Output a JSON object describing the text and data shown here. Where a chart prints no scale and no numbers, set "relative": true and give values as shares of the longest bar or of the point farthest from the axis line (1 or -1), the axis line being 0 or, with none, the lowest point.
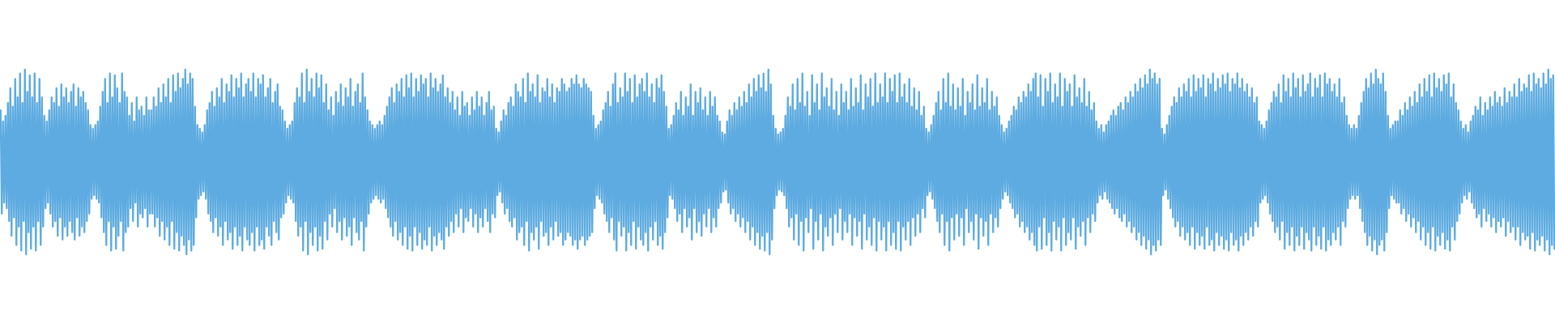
{
  "chart_data": {
    "type": "line",
    "relative": true,
    "color": "#5dabe0",
    "categories": [
      null,
      null,
      null,
      null,
      null,
      null,
      null,
      null,
      null,
      null,
      null,
      null,
      null,
      null,
      null,
      null,
      null,
      null,
      null,
      null,
      null,
      null,
      null,
      null,
      null,
      null,
      null,
      null,
      null,
      null,
      null,
      null,
      null,
      null,
      null,
      null,
      null,
      null,
      null,
      null,
      null,
      null,
      null,
      null,
      null,
      null,
      null,
      null,
      null,
      null,
      null,
      null,
      null,
      null,
      null,
      null,
      null,
      null,
      null,
      null,
      null,
      null,
      null,
      null,
      null,
      null,
      null,
      null,
      null,
      null,
      null,
      null,
      null,
      null,
      null,
      null,
      null,
      null,
      null,
      null,
      null,
      null,
      null,
      null,
      null,
      null,
      null,
      null,
      null,
      null,
      null,
      null,
      null,
      null,
      null,
      null,
      null,
      null,
      null,
      null,
      null,
      null,
      null,
      null,
      null,
      null,
      null,
      null,
      null,
      null,
      null,
      null,
      null,
      null,
      null,
      null,
      null,
      null,
      null,
      null,
      null,
      null,
      null,
      null,
      null,
      null,
      null,
      null,
      null,
      null,
      null,
      null,
      null,
      null,
      null,
      null,
      null,
      null,
      null,
      null,
      null,
      null,
      null,
      null,
      null,
      null,
      null,
      null,
      null,
      null,
      null,
      null,
      null,
      null,
      null,
      null,
      null,
      null,
      null,
      null,
      null,
      null,
      null,
      null,
      null,
      null,
      null,
      null,
      null,
      null,
      null,
      null,
      null,
      null,
      null,
      null,
      null,
      null,
      null,
      null,
      null,
      null,
      null,
      null,
      null,
      null,
      null,
      null,
      null,
      null,
      null,
      null,
      null,
      null,
      null,
      null,
      null,
      null,
      null,
      null,
      null,
      null,
      null,
      null,
      null,
      null,
      null,
      null,
      null,
      null,
      null,
      null,
      null,
      null,
      null,
      null,
      null,
      null,
      null,
      null,
      null,
      null,
      null,
      null,
      null,
      null,
      null,
      null,
      null,
      null,
      null,
      null,
      null,
      null,
      null,
      null,
      null,
      null,
      null,
      null,
      null,
      null,
      null,
      null,
      null,
      null,
      null,
      null,
      null,
      null,
      null,
      null,
      null,
      null,
      null,
      null,
      null,
      null,
      null,
      null,
      null,
      null,
      null,
      null,
      null,
      null,
      null,
      null,
      null,
      null,
      null,
      null,
      null,
      null,
      null,
      null,
      null,
      null,
      null,
      null,
      null,
      null,
      null,
      null,
      null,
      null,
      null,
      null,
      null,
      null,
      null,
      null,
      null,
      null,
      null,
      null,
      null,
      null,
      null,
      null,
      null,
      null,
      null,
      null,
      null,
      null,
      null,
      null,
      null,
      null,
      null,
      null,
      null,
      null,
      null,
      null,
      null,
      null,
      null,
      null,
      null,
      null,
      null,
      null,
      null,
      null,
      null,
      null,
      null,
      null,
      null,
      null,
      null,
      null,
      null,
      null,
      null,
      null,
      null,
      null,
      null,
      null,
      null,
      null,
      null,
      null,
      null,
      null,
      null,
      null,
      null,
      null,
      null,
      null,
      null,
      null,
      null,
      null,
      null,
      null,
      null,
      null,
      null,
      null,
      null,
      null,
      null,
      null,
      null,
      null,
      null,
      null,
      null,
      null,
      null,
      null,
      null,
      null,
      null,
      null,
      null,
      null,
      null,
      null,
      null,
      null,
      null,
      null,
      null,
      null,
      null,
      null,
      null,
      null,
      null,
      null,
      null,
      null,
      null,
      null,
      null,
      null,
      null,
      null,
      null,
      null,
      null,
      null,
      null,
      null,
      null,
      null,
      null,
      null,
      null,
      null,
      null,
      null,
      null,
      null,
      null,
      null,
      null,
      null,
      null,
      null,
      null,
      null,
      null,
      null,
      null,
      null,
      null,
      null,
      null,
      null,
      null,
      null,
      null,
      null,
      null,
      null,
      null,
      null,
      null,
      null,
      null,
      null,
      null,
      null,
      null,
      null,
      null,
      null,
      null,
      null,
      null,
      null,
      null,
      null,
      null,
      null,
      null,
      null,
      null,
      null,
      null,
      null,
      null,
      null,
      null,
      null,
      null,
      null,
      null,
      null,
      null,
      null,
      null,
      null,
      null,
      null,
      null,
      null,
      null,
      null,
      null,
      null,
      null,
      null,
      null,
      null,
      null,
      null,
      null,
      null,
      null,
      null,
      null,
      null,
      null,
      null,
      null,
      null,
      null,
      null,
      null,
      null,
      null,
      null,
      null,
      null,
      null,
      null,
      null,
      null,
      null,
      null,
      null,
      null,
      null,
      null,
      null,
      null,
      null,
      null,
      null,
      null,
      null,
      null,
      null,
      null,
      null,
      null,
      null,
      null,
      null,
      null,
      null,
      null,
      null,
      null,
      null,
      null,
      null,
      null,
      null,
      null,
      null,
      null,
      null,
      null,
      null,
      null,
      null,
      null,
      null,
      null,
      null,
      null,
      null,
      null,
      null,
      null,
      null,
      null,
      null,
      null,
      null,
      null,
      null,
      null,
      null,
      null,
      null,
      null,
      null,
      null,
      null,
      null,
      null,
      null,
      null,
      null,
      null,
      null,
      null,
      null,
      null,
      null,
      null,
      null,
      null,
      null,
      null,
      null,
      null,
      null,
      null,
      null,
      null,
      null,
      null,
      null,
      null,
      null,
      null,
      null,
      null,
      null,
      null,
      null,
      null,
      null,
      null,
      null,
      null,
      null,
      null,
      null,
      null,
      null,
      null,
      null,
      null,
      null,
      null,
      null,
      null,
      null,
      null,
      null,
      null,
      null,
      null,
      null,
      null,
      null,
      null,
      null,
      null,
      null,
      null,
      null,
      null,
      null,
      null,
      null,
      null,
      null,
      null,
      null,
      null,
      null,
      null,
      null,
      null,
      null,
      null,
      null,
      null,
      null,
      null,
      null,
      null,
      null,
      null,
      null,
      null,
      null,
      null,
      null,
      null,
      null,
      null,
      null,
      null,
      null,
      null,
      null,
      null,
      null,
      null,
      null,
      null,
      null,
      null,
      null,
      null,
      null,
      null,
      null,
      null,
      null,
      null,
      null,
      null,
      null,
      null,
      null,
      null,
      null,
      null,
      null,
      null,
      null,
      null,
      null,
      null,
      null,
      null,
      null,
      null,
      null,
      null,
      null,
      null,
      null,
      null,
      null,
      null,
      null,
      null,
      null,
      null,
      null,
      null,
      null,
      null,
      null,
      null,
      null,
      null,
      null,
      null,
      null,
      null,
      null,
      null,
      null,
      null,
      null,
      null,
      null,
      null,
      null,
      null,
      null,
      null,
      null,
      null,
      null,
      null,
      null,
      null,
      null,
      null,
      null,
      null,
      null,
      null,
      null,
      null,
      null,
      null,
      null,
      null,
      null,
      null,
      null,
      null,
      null,
      null,
      null,
      null,
      null,
      null,
      null,
      null,
      null,
      null,
      null,
      null,
      null,
      null,
      null,
      null,
      null,
      null,
      null,
      null,
      null,
      null,
      null,
      null,
      null,
      null,
      null,
      null,
      null,
      null,
      null,
      null,
      null,
      null,
      null,
      null,
      null,
      null,
      null,
      null,
      null,
      null,
      null,
      null,
      null,
      null,
      null,
      null,
      null,
      null,
      null,
      null,
      null,
      null,
      null,
      null,
      null,
      null,
      null,
      null,
      null,
      null,
      null,
      null,
      null,
      null,
      null,
      null,
      null,
      null,
      null,
      null,
      null,
      null,
      null,
      null,
      null,
      null,
      null,
      null,
      null,
      null,
      null,
      null,
      null,
      null,
      null,
      null,
      null,
      null,
      null,
      null,
      null,
      null,
      null,
      null,
      null,
      null,
      null,
      null,
      null,
      null,
      null,
      null,
      null,
      null,
      null,
      null,
      null,
      null,
      null,
      null,
      null,
      null,
      null,
      null,
      null,
      null,
      null,
      null,
      null,
      null,
      null,
      null,
      null,
      null,
      null,
      null,
      null,
      null,
      null,
      null,
      null,
      null,
      null,
      null,
      null,
      null,
      null,
      null,
      null,
      null,
      null,
      null,
      null,
      null,
      null,
      null,
      null,
      null,
      null,
      null,
      null,
      null,
      null,
      null,
      null,
      null,
      null,
      null,
      null,
      null,
      null,
      null,
      null,
      null,
      null,
      null,
      null,
      null,
      null,
      null,
      null,
      null,
      null,
      null,
      null,
      null,
      null,
      null,
      null,
      null,
      null,
      null,
      null,
      null,
      null,
      null,
      null,
      null,
      null,
      null,
      null,
      null,
      null,
      null,
      null,
      null,
      null,
      null,
      null,
      null,
      null,
      null,
      null,
      null,
      null,
      null,
      null,
      null,
      null,
      null,
      null,
      null,
      null,
      null,
      null,
      null,
      null,
      null,
      null,
      null,
      null,
      null,
      null,
      null,
      null,
      null,
      null,
      null,
      null,
      null,
      null,
      null,
      null,
      null,
      null,
      null,
      null,
      null,
      null,
      null,
      null,
      null,
      null,
      null,
      null,
      null,
      null,
      null,
      null,
      null,
      null,
      null,
      null,
      null,
      null,
      null,
      null,
      null,
      null,
      null,
      null,
      null,
      null,
      null,
      null,
      null,
      null,
      null,
      null,
      null,
      null,
      null,
      null,
      null,
      null,
      null,
      null,
      null,
      null,
      null,
      null,
      null,
      null,
      null,
      null,
      null,
      null,
      null,
      null,
      null,
      null,
      null,
      null,
      null,
      null,
      null,
      null,
      null,
      null,
      null,
      null,
      null,
      null,
      null,
      null,
      null,
      null,
      null,
      null,
      null,
      null,
      null,
      null,
      null,
      null,
      null,
      null,
      null,
      null,
      null,
      null,
      null,
      null,
      null,
      null,
      null,
      null,
      null,
      null,
      null,
      null,
      null,
      null,
      null,
      null,
      null,
      null,
      null,
      null,
      null,
      null,
      null,
      null,
      null,
      null,
      null,
      null,
      null,
      null,
      null,
      null,
      null,
      null,
      null,
      null,
      null,
      null,
      null,
      null,
      null,
      null,
      null,
      null,
      null,
      null,
      null,
      null,
      null,
      null,
      null,
      null,
      null,
      null,
      null,
      null,
      null,
      null,
      null,
      null,
      null,
      null,
      null,
      null,
      null,
      null,
      null,
      null,
      null,
      null,
      null,
      null,
      null,
      null,
      null,
      null,
      null,
      null,
      null,
      null,
      null,
      null,
      null,
      null,
      null,
      null,
      null,
      null,
      null,
      null,
      null,
      null,
      null,
      null,
      null,
      null,
      null,
      null,
      null,
      null,
      null,
      null,
      null,
      null,
      null,
      null,
      null,
      null,
      null,
      null,
      null,
      null,
      null,
      null,
      null,
      null,
      null,
      null,
      null,
      null,
      null,
      null,
      null,
      null,
      null,
      null,
      null,
      null,
      null,
      null,
      null,
      null,
      null,
      null,
      null,
      null,
      null,
      null,
      null,
      null,
      null,
      null,
      null,
      null,
      null,
      null,
      null,
      null,
      null,
      null,
      null,
      null,
      null,
      null,
      null,
      null,
      null,
      null,
      null,
      null,
      null,
      null,
      null,
      null,
      null,
      null,
      null,
      null,
      null,
      null,
      null,
      null,
      null,
      null,
      null,
      null,
      null,
      null,
      null,
      null,
      null,
      null,
      null,
      null,
      null,
      null,
      null,
      null
    ],
    "values": [
      0.78,
      0.22,
      0.72,
      0.28,
      0.75,
      0.25,
      0.82,
      0.18,
      0.9,
      0.1,
      0.8,
      0.2,
      0.95,
      0.05,
      0.85,
      0.15,
      0.98,
      0.02,
      0.82,
      0.18,
      1,
      0,
      0.88,
      0.12,
      0.97,
      0.03,
      0.85,
      0.15,
      0.98,
      0.02,
      0.82,
      0.18,
      0.95,
      0.05,
      0.85,
      0.15,
      0.75,
      0.25,
      0.72,
      0.28,
      0.78,
      0.22,
      0.85,
      0.15,
      0.82,
      0.18,
      0.9,
      0.1,
      0.8,
      0.2,
      0.92,
      0.08,
      0.85,
      0.15,
      0.9,
      0.1,
      0.82,
      0.18,
      0.88,
      0.12,
      0.92,
      0.08,
      0.8,
      0.2,
      0.9,
      0.1,
      0.85,
      0.15,
      0.88,
      0.12,
      0.82,
      0.18,
      0.78,
      0.22,
      0.7,
      0.3,
      0.68,
      0.32,
      0.7,
      0.3,
      0.72,
      0.28,
      0.8,
      0.2,
      0.88,
      0.12,
      0.95,
      0.05,
      0.82,
      0.18,
      0.98,
      0.02,
      0.85,
      0.15,
      0.97,
      0.03,
      0.9,
      0.1,
      0.82,
      0.18,
      0.98,
      0.02,
      0.88,
      0.12,
      0.85,
      0.15,
      0.75,
      0.25,
      0.82,
      0.18,
      0.72,
      0.28,
      0.85,
      0.15,
      0.78,
      0.22,
      0.8,
      0.2,
      0.75,
      0.25,
      0.85,
      0.15,
      0.78,
      0.22,
      0.78,
      0.22,
      0.85,
      0.15,
      0.8,
      0.2,
      0.9,
      0.1,
      0.82,
      0.18,
      0.92,
      0.08,
      0.85,
      0.15,
      0.95,
      0.05,
      0.82,
      0.18,
      0.97,
      0.03,
      0.88,
      0.12,
      0.98,
      0.02,
      0.9,
      0.1,
      0.95,
      0.05,
      1,
      0,
      0.92,
      0.08,
      0.98,
      0.02,
      0.95,
      0.05,
      0.8,
      0.2,
      0.7,
      0.3,
      0.68,
      0.32,
      0.66,
      0.34,
      0.7,
      0.3,
      0.78,
      0.22,
      0.82,
      0.18,
      0.88,
      0.12,
      0.8,
      0.2,
      0.9,
      0.1,
      0.85,
      0.15,
      0.95,
      0.05,
      0.82,
      0.18,
      0.92,
      0.08,
      0.88,
      0.12,
      0.97,
      0.03,
      0.85,
      0.15,
      0.95,
      0.05,
      0.9,
      0.1,
      0.98,
      0.02,
      0.85,
      0.15,
      0.92,
      0.08,
      0.95,
      0.05,
      0.88,
      0.12,
      0.98,
      0.02,
      0.85,
      0.15,
      0.95,
      0.05,
      0.92,
      0.08,
      0.97,
      0.03,
      0.85,
      0.15,
      0.9,
      0.1,
      0.95,
      0.05,
      0.82,
      0.18,
      0.88,
      0.12,
      0.92,
      0.08,
      0.8,
      0.2,
      0.78,
      0.22,
      0.72,
      0.28,
      0.68,
      0.32,
      0.7,
      0.3,
      0.72,
      0.28,
      0.82,
      0.18,
      0.9,
      0.1,
      0.85,
      0.15,
      0.98,
      0.02,
      0.82,
      0.18,
      1,
      0,
      0.88,
      0.12,
      0.95,
      0.05,
      0.85,
      0.15,
      0.98,
      0.02,
      0.9,
      0.1,
      0.97,
      0.03,
      0.82,
      0.18,
      0.92,
      0.08,
      0.78,
      0.22,
      0.85,
      0.15,
      0.75,
      0.25,
      0.88,
      0.12,
      0.82,
      0.18,
      0.92,
      0.08,
      0.8,
      0.2,
      0.9,
      0.1,
      0.85,
      0.15,
      0.95,
      0.05,
      0.8,
      0.2,
      0.88,
      0.12,
      0.92,
      0.08,
      0.82,
      0.18,
      0.98,
      0.02,
      0.85,
      0.15,
      0.78,
      0.22,
      0.72,
      0.28,
      0.7,
      0.3,
      0.68,
      0.32,
      0.7,
      0.3,
      0.72,
      0.28,
      0.7,
      0.3,
      0.75,
      0.25,
      0.8,
      0.2,
      0.85,
      0.15,
      0.9,
      0.1,
      0.82,
      0.18,
      0.92,
      0.08,
      0.88,
      0.12,
      0.95,
      0.05,
      0.85,
      0.15,
      0.97,
      0.03,
      0.9,
      0.1,
      0.98,
      0.02,
      0.85,
      0.15,
      0.95,
      0.05,
      0.88,
      0.12,
      0.97,
      0.03,
      0.92,
      0.08,
      0.95,
      0.05,
      0.85,
      0.15,
      0.98,
      0.02,
      0.9,
      0.1,
      0.95,
      0.05,
      0.88,
      0.12,
      0.92,
      0.08,
      0.97,
      0.03,
      0.85,
      0.15,
      0.9,
      0.1,
      0.82,
      0.18,
      0.88,
      0.12,
      0.78,
      0.22,
      0.85,
      0.15,
      0.75,
      0.25,
      0.88,
      0.12,
      0.8,
      0.2,
      0.82,
      0.18,
      0.75,
      0.25,
      0.85,
      0.15,
      0.78,
      0.22,
      0.88,
      0.12,
      0.8,
      0.2,
      0.85,
      0.15,
      0.75,
      0.25,
      0.82,
      0.18,
      0.88,
      0.12,
      0.78,
      0.22,
      0.8,
      0.2,
      0.68,
      0.32,
      0.66,
      0.34,
      0.72,
      0.28,
      0.78,
      0.22,
      0.75,
      0.25,
      0.82,
      0.18,
      0.85,
      0.15,
      0.8,
      0.2,
      0.92,
      0.08,
      0.88,
      0.12,
      0.85,
      0.15,
      0.95,
      0.05,
      0.82,
      0.18,
      0.98,
      0.02,
      0.88,
      0.12,
      0.92,
      0.08,
      0.85,
      0.15,
      0.97,
      0.03,
      0.82,
      0.18,
      0.9,
      0.1,
      0.88,
      0.12,
      0.95,
      0.05,
      0.85,
      0.15,
      0.92,
      0.08,
      0.82,
      0.18,
      0.9,
      0.1,
      0.88,
      0.12,
      0.95,
      0.05,
      0.92,
      0.08,
      0.88,
      0.12,
      0.9,
      0.1,
      0.95,
      0.05,
      0.92,
      0.08,
      0.97,
      0.03,
      0.92,
      0.08,
      0.9,
      0.1,
      0.95,
      0.05,
      0.92,
      0.08,
      0.9,
      0.1,
      0.88,
      0.12,
      0.75,
      0.25,
      0.68,
      0.32,
      0.7,
      0.3,
      0.72,
      0.28,
      0.78,
      0.22,
      0.82,
      0.18,
      0.88,
      0.12,
      0.8,
      0.2,
      0.92,
      0.08,
      0.98,
      0.02,
      0.82,
      0.18,
      0.9,
      0.1,
      0.85,
      0.15,
      0.98,
      0.02,
      0.88,
      0.12,
      0.95,
      0.05,
      0.82,
      0.18,
      0.97,
      0.03,
      0.85,
      0.15,
      0.92,
      0.08,
      0.95,
      0.05,
      0.88,
      0.12,
      0.98,
      0.02,
      0.85,
      0.15,
      0.92,
      0.08,
      0.82,
      0.18,
      0.95,
      0.05,
      0.9,
      0.1,
      0.97,
      0.03,
      0.88,
      0.12,
      0.8,
      0.2,
      0.68,
      0.32,
      0.7,
      0.3,
      0.75,
      0.25,
      0.82,
      0.18,
      0.78,
      0.22,
      0.88,
      0.12,
      0.75,
      0.25,
      0.85,
      0.15,
      0.8,
      0.2,
      0.92,
      0.08,
      0.75,
      0.25,
      0.88,
      0.12,
      0.82,
      0.18,
      0.9,
      0.1,
      0.78,
      0.22,
      0.85,
      0.15,
      0.75,
      0.25,
      0.88,
      0.12,
      0.8,
      0.2,
      0.85,
      0.15,
      0.75,
      0.25,
      0.72,
      0.28,
      0.66,
      0.34,
      0.65,
      0.35,
      0.72,
      0.28,
      0.78,
      0.22,
      0.75,
      0.25,
      0.82,
      0.18,
      0.78,
      0.22,
      0.85,
      0.15,
      0.8,
      0.2,
      0.88,
      0.12,
      0.82,
      0.18,
      0.92,
      0.08,
      0.85,
      0.15,
      0.95,
      0.05,
      0.88,
      0.12,
      0.97,
      0.03,
      0.9,
      0.1,
      0.98,
      0.02,
      0.88,
      0.12,
      1,
      0,
      0.92,
      0.08,
      0.75,
      0.25,
      0.68,
      0.32,
      0.65,
      0.35,
      0.66,
      0.34,
      0.68,
      0.32,
      0.75,
      0.25,
      0.85,
      0.15,
      0.8,
      0.2,
      0.92,
      0.08,
      0.78,
      0.22,
      0.95,
      0.05,
      0.82,
      0.18,
      0.98,
      0.02,
      0.8,
      0.2,
      0.88,
      0.12,
      0.75,
      0.25,
      0.97,
      0.03,
      0.82,
      0.18,
      0.92,
      0.08,
      0.78,
      0.22,
      0.98,
      0.02,
      0.85,
      0.15,
      0.9,
      0.1,
      0.8,
      0.2,
      0.95,
      0.05,
      0.78,
      0.22,
      0.88,
      0.12,
      0.75,
      0.25,
      0.92,
      0.08,
      0.82,
      0.18,
      0.88,
      0.12,
      0.78,
      0.22,
      0.95,
      0.05,
      0.8,
      0.2,
      0.9,
      0.1,
      0.82,
      0.18,
      0.97,
      0.03,
      0.78,
      0.22,
      0.92,
      0.08,
      0.85,
      0.15,
      0.95,
      0.05,
      0.8,
      0.2,
      0.98,
      0.02,
      0.82,
      0.18,
      0.92,
      0.08,
      0.85,
      0.15,
      0.98,
      0.02,
      0.82,
      0.18,
      0.95,
      0.05,
      0.88,
      0.12,
      0.97,
      0.03,
      0.82,
      0.18,
      0.98,
      0.02,
      0.85,
      0.15,
      0.92,
      0.08,
      0.82,
      0.18,
      0.95,
      0.05,
      0.8,
      0.2,
      0.9,
      0.1,
      0.78,
      0.22,
      0.88,
      0.12,
      0.75,
      0.25,
      0.8,
      0.2,
      0.68,
      0.32,
      0.66,
      0.34,
      0.7,
      0.3,
      0.75,
      0.25,
      0.82,
      0.18,
      0.88,
      0.12,
      0.78,
      0.22,
      0.95,
      0.05,
      0.82,
      0.18,
      0.98,
      0.02,
      0.8,
      0.2,
      0.92,
      0.08,
      0.78,
      0.22,
      0.9,
      0.1,
      0.8,
      0.2,
      0.95,
      0.05,
      0.75,
      0.25,
      0.88,
      0.12,
      0.82,
      0.18,
      0.92,
      0.08,
      0.78,
      0.22,
      0.97,
      0.03,
      0.8,
      0.2,
      0.9,
      0.1,
      0.82,
      0.18,
      0.95,
      0.05,
      0.78,
      0.22,
      0.88,
      0.12,
      0.8,
      0.2,
      0.85,
      0.15,
      0.75,
      0.25,
      0.7,
      0.3,
      0.66,
      0.34,
      0.68,
      0.32,
      0.72,
      0.28,
      0.75,
      0.25,
      0.8,
      0.2,
      0.78,
      0.22,
      0.85,
      0.15,
      0.82,
      0.18,
      0.88,
      0.12,
      0.85,
      0.15,
      0.92,
      0.08,
      0.88,
      0.12,
      0.95,
      0.05,
      0.98,
      0.02,
      0.85,
      0.15,
      0.97,
      0.03,
      0.8,
      0.2,
      0.95,
      0.05,
      0.88,
      0.12,
      0.98,
      0.02,
      0.82,
      0.18,
      0.92,
      0.08,
      0.85,
      0.15,
      0.98,
      0.02,
      0.8,
      0.2,
      0.95,
      0.05,
      0.88,
      0.12,
      0.92,
      0.08,
      0.8,
      0.2,
      0.97,
      0.03,
      0.85,
      0.15,
      0.9,
      0.1,
      0.82,
      0.18,
      0.95,
      0.05,
      0.8,
      0.2,
      0.88,
      0.12,
      0.78,
      0.22,
      0.82,
      0.18,
      0.72,
      0.28,
      0.68,
      0.32,
      0.7,
      0.3,
      0.66,
      0.34,
      0.7,
      0.3,
      0.72,
      0.28,
      0.75,
      0.25,
      0.78,
      0.22,
      0.75,
      0.25,
      0.8,
      0.2,
      0.82,
      0.18,
      0.78,
      0.22,
      0.85,
      0.15,
      0.82,
      0.18,
      0.88,
      0.12,
      0.85,
      0.15,
      0.92,
      0.08,
      0.88,
      0.12,
      0.95,
      0.05,
      0.9,
      0.1,
      0.97,
      0.03,
      0.92,
      0.08,
      1,
      0,
      0.95,
      0.05,
      0.98,
      0.02,
      0.92,
      0.08,
      0.95,
      0.05,
      0.68,
      0.32,
      0.65,
      0.35,
      0.7,
      0.3,
      0.75,
      0.25,
      0.8,
      0.2,
      0.85,
      0.15,
      0.82,
      0.18,
      0.9,
      0.1,
      0.85,
      0.15,
      0.92,
      0.08,
      0.88,
      0.12,
      0.95,
      0.05,
      0.85,
      0.15,
      0.97,
      0.03,
      0.88,
      0.12,
      0.95,
      0.05,
      0.9,
      0.1,
      0.97,
      0.03,
      0.85,
      0.15,
      0.95,
      0.05,
      0.92,
      0.08,
      0.98,
      0.02,
      0.88,
      0.12,
      0.95,
      0.05,
      0.9,
      0.1,
      0.97,
      0.03,
      0.92,
      0.08,
      0.98,
      0.02,
      0.88,
      0.12,
      0.95,
      0.05,
      0.92,
      0.08,
      0.98,
      0.02,
      0.9,
      0.1,
      0.95,
      0.05,
      0.88,
      0.12,
      0.92,
      0.08,
      0.85,
      0.15,
      0.9,
      0.1,
      0.82,
      0.18,
      0.85,
      0.15,
      0.72,
      0.28,
      0.7,
      0.3,
      0.68,
      0.32,
      0.72,
      0.28,
      0.78,
      0.22,
      0.82,
      0.18,
      0.88,
      0.12,
      0.85,
      0.15,
      0.92,
      0.08,
      0.82,
      0.18,
      0.97,
      0.03,
      0.88,
      0.12,
      0.95,
      0.05,
      0.85,
      0.15,
      0.98,
      0.02,
      0.9,
      0.1,
      0.95,
      0.05,
      0.85,
      0.15,
      0.97,
      0.03,
      0.88,
      0.12,
      0.92,
      0.08,
      0.98,
      0.02,
      0.85,
      0.15,
      0.95,
      0.05,
      0.9,
      0.1,
      0.97,
      0.03,
      0.85,
      0.15,
      0.98,
      0.02,
      0.92,
      0.08,
      0.95,
      0.05,
      0.88,
      0.12,
      0.92,
      0.08,
      0.85,
      0.15,
      0.95,
      0.05,
      0.82,
      0.18,
      0.85,
      0.15,
      0.75,
      0.25,
      0.7,
      0.3,
      0.68,
      0.32,
      0.7,
      0.3,
      0.68,
      0.32,
      0.75,
      0.25,
      0.82,
      0.18,
      0.88,
      0.12,
      0.95,
      0.05,
      0.9,
      0.1,
      0.98,
      0.02,
      0.92,
      0.08,
      1,
      0,
      0.95,
      0.05,
      0.92,
      0.08,
      0.98,
      0.02,
      0.88,
      0.12,
      0.75,
      0.25,
      0.68,
      0.32,
      0.7,
      0.3,
      0.72,
      0.28,
      0.72,
      0.28,
      0.78,
      0.22,
      0.75,
      0.25,
      0.82,
      0.18,
      0.78,
      0.22,
      0.85,
      0.15,
      0.8,
      0.2,
      0.88,
      0.12,
      0.82,
      0.18,
      0.92,
      0.08,
      0.85,
      0.15,
      0.95,
      0.05,
      0.88,
      0.12,
      0.97,
      0.03,
      0.85,
      0.15,
      0.98,
      0.02,
      0.9,
      0.1,
      0.95,
      0.05,
      0.88,
      0.12,
      0.97,
      0.03,
      0.92,
      0.08,
      0.98,
      0.02,
      0.85,
      0.15,
      0.92,
      0.08,
      0.82,
      0.18,
      0.78,
      0.22,
      0.72,
      0.28,
      0.68,
      0.32,
      0.7,
      0.3,
      0.66,
      0.34,
      0.72,
      0.28,
      0.75,
      0.25,
      0.8,
      0.2,
      0.78,
      0.22,
      0.85,
      0.15,
      0.75,
      0.25,
      0.82,
      0.18,
      0.78,
      0.22,
      0.85,
      0.15,
      0.8,
      0.2,
      0.88,
      0.12,
      0.82,
      0.18,
      0.85,
      0.15,
      0.8,
      0.2,
      0.9,
      0.1,
      0.82,
      0.18,
      0.88,
      0.12,
      0.85,
      0.15,
      0.92,
      0.08,
      0.85,
      0.15,
      0.95,
      0.05,
      0.88,
      0.12,
      0.92,
      0.08,
      0.9,
      0.1,
      0.97,
      0.03,
      0.88,
      0.12,
      0.98,
      0.02,
      0.92,
      0.08,
      0.95,
      0.05,
      0.9,
      0.1,
      0.98,
      0.02,
      0.92,
      0.08,
      1,
      0,
      0.95,
      0.05,
      0.97,
      0.03
    ]
  }
}
